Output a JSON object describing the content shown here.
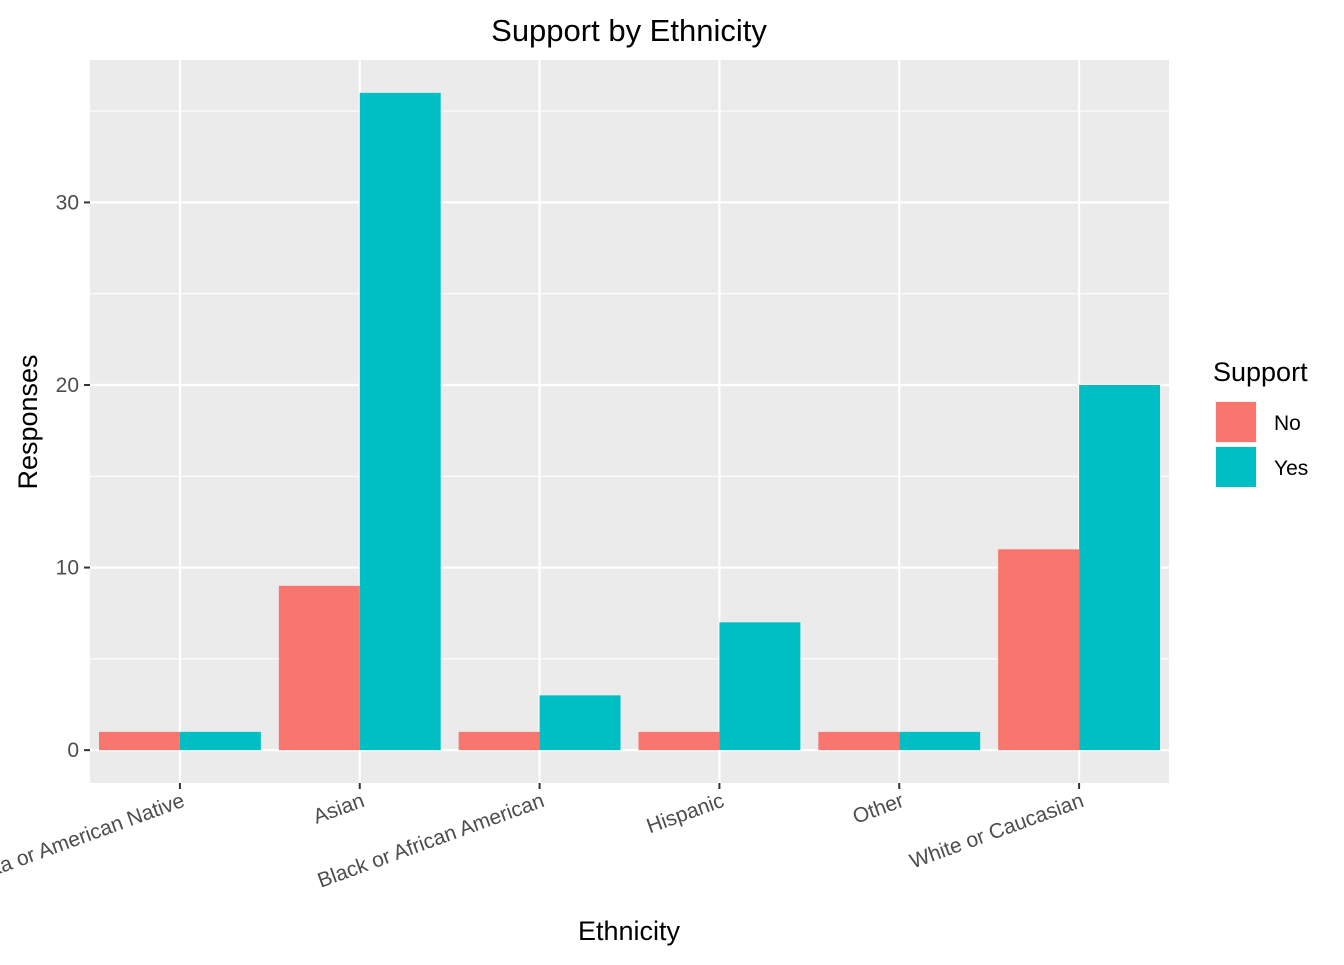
{
  "chart_data": {
    "type": "bar",
    "title": "Support by Ethnicity",
    "xlabel": "Ethnicity",
    "ylabel": "Responses",
    "categories": [
      "Alaska or American Native",
      "Asian",
      "Black or African American",
      "Hispanic",
      "Other",
      "White or Caucasian"
    ],
    "series": [
      {
        "name": "No",
        "color": "#F8766D",
        "values": [
          1,
          9,
          1,
          1,
          1,
          11
        ]
      },
      {
        "name": "Yes",
        "color": "#00BFC4",
        "values": [
          1,
          36,
          3,
          7,
          1,
          20
        ]
      }
    ],
    "ylim": [
      -1.8,
      37.8
    ],
    "yticks": [
      0,
      10,
      20,
      30
    ],
    "ytick_labels": [
      "0",
      "10",
      "20",
      "30"
    ],
    "grid": true,
    "legend": {
      "title": "Support",
      "position": "right"
    },
    "panel_background": "#EBEBEB"
  }
}
